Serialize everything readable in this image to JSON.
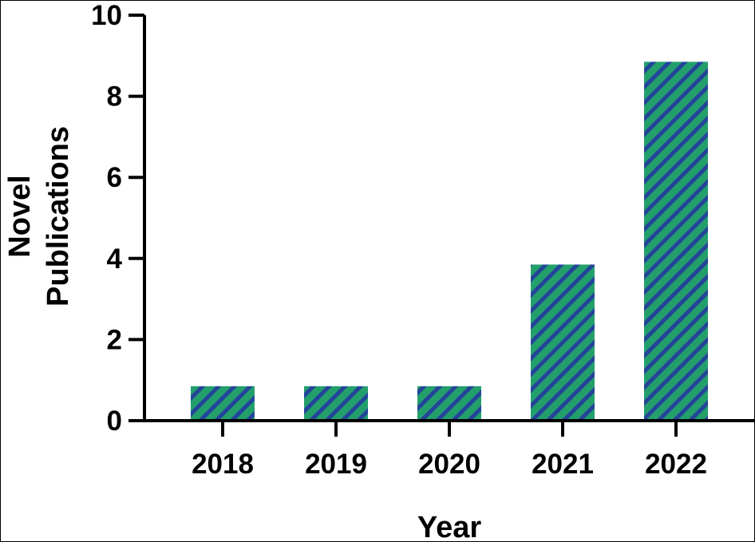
{
  "chart_data": {
    "type": "bar",
    "categories": [
      "2018",
      "2019",
      "2020",
      "2021",
      "2022"
    ],
    "values": [
      0.85,
      0.85,
      0.85,
      3.85,
      8.85
    ],
    "xlabel": "Year",
    "ylabel_lines": [
      "Novel",
      "Publications"
    ],
    "ylim": [
      0,
      10
    ],
    "yticks": [
      "0",
      "2",
      "4",
      "6",
      "8",
      "10"
    ],
    "grid": false,
    "legend": "none",
    "bar_fill": {
      "pattern": "diagonal-stripes",
      "base_color": "#239f6c",
      "stripe_color": "#24449a"
    }
  }
}
